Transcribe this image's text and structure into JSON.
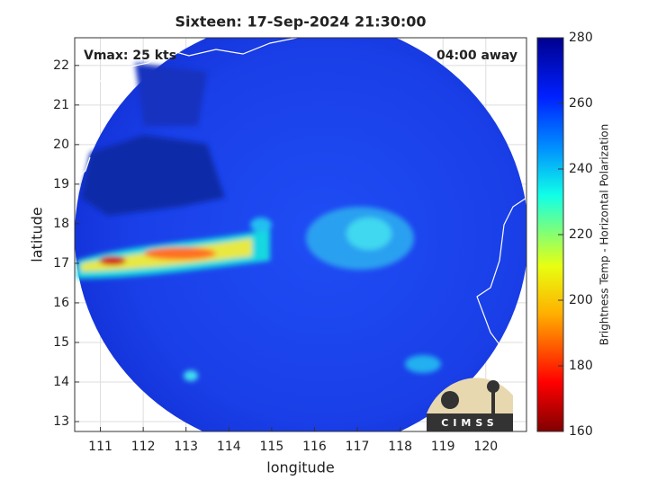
{
  "map": {
    "title": "Sixteen: 17-Sep-2024 21:30:00",
    "annotations": {
      "left": "Vmax: 25 kts",
      "right": "04:00 away"
    },
    "x_label": "longitude",
    "y_label": "latitude",
    "xlim": [
      110.4,
      120.95
    ],
    "ylim": [
      12.75,
      22.7
    ],
    "xticks": [
      111,
      112,
      113,
      114,
      115,
      116,
      117,
      118,
      119,
      120
    ],
    "yticks": [
      13,
      14,
      15,
      16,
      17,
      18,
      19,
      20,
      21,
      22
    ],
    "grid": true,
    "colorbar": {
      "label": "Brightness Temp - Horizontal Polarization",
      "lim": [
        160,
        280
      ],
      "ticks": [
        160,
        180,
        200,
        220,
        240,
        260,
        280
      ]
    },
    "logo": "CIMSS"
  }
}
